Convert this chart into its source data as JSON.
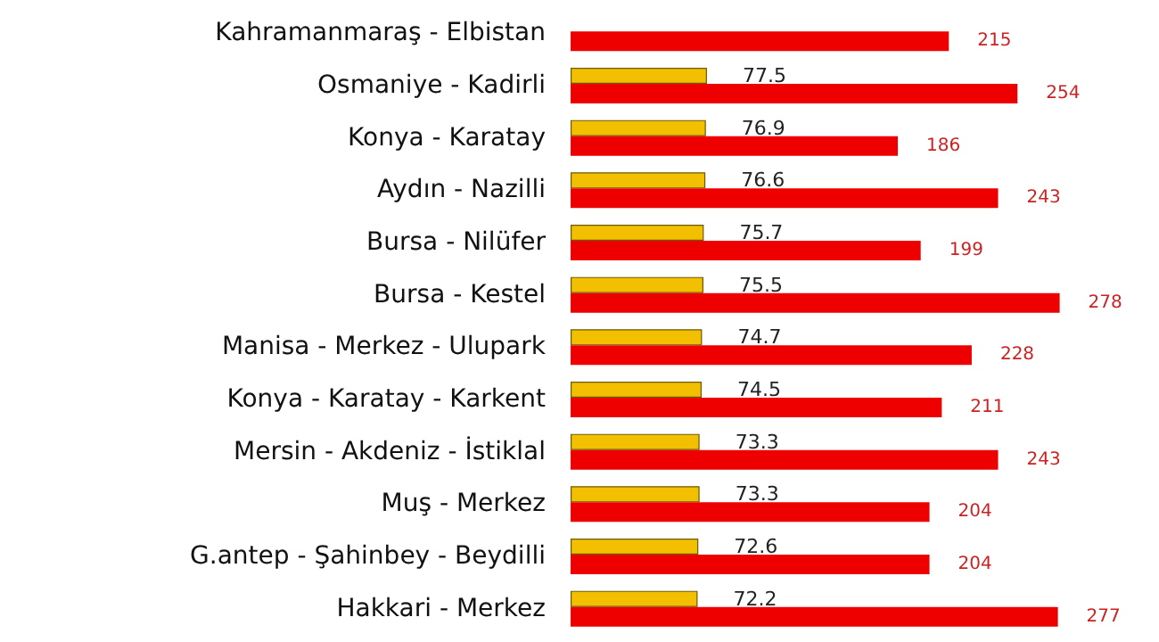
{
  "chart_data": {
    "type": "bar",
    "orientation": "horizontal",
    "categories": [
      "Kahramanmaraş - Elbistan",
      "Osmaniye - Kadirli",
      "Konya - Karatay",
      "Aydın - Nazilli",
      "Bursa - Nilüfer",
      "Bursa - Kestel",
      "Manisa - Merkez - Ulupark",
      "Konya - Karatay - Karkent",
      "Mersin - Akdeniz - İstiklal",
      "Muş - Merkez",
      "G.antep - Şahinbey - Beydilli",
      "Hakkari - Merkez"
    ],
    "series": [
      {
        "color": "#f2c000",
        "values": [
          null,
          77.5,
          76.9,
          76.6,
          75.7,
          75.5,
          74.7,
          74.5,
          73.3,
          73.3,
          72.6,
          72.2
        ]
      },
      {
        "color": "#ee0000",
        "values": [
          215,
          254,
          186,
          243,
          199,
          278,
          228,
          211,
          243,
          204,
          204,
          277
        ]
      }
    ],
    "data_labels": true,
    "tick_labels": "y"
  }
}
